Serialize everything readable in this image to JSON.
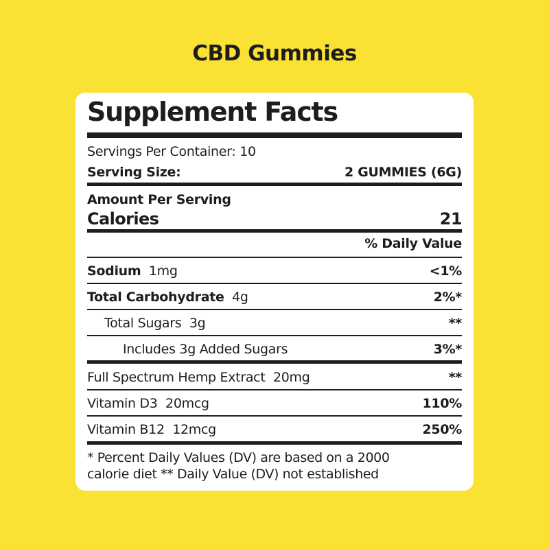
{
  "heading": "CBD Gummies",
  "label": {
    "title": "Supplement Facts",
    "servings_per_container": "Servings Per Container: 10",
    "serving_size_label": "Serving Size:",
    "serving_size_value": "2 GUMMIES (6G)",
    "amount_per_serving": "Amount Per Serving",
    "calories_label": "Calories",
    "calories_value": "21",
    "daily_value_header": "% Daily Value",
    "rows": [
      {
        "name": "Sodium",
        "amount": "1mg",
        "dv": "<1%"
      },
      {
        "name": "Total Carbohydrate",
        "amount": "4g",
        "dv": "2%*"
      },
      {
        "name": "Total Sugars",
        "amount": "3g",
        "dv": "**"
      },
      {
        "name": "Includes 3g Added Sugars",
        "amount": "",
        "dv": "3%*"
      },
      {
        "name": "Full Spectrum Hemp Extract",
        "amount": "20mg",
        "dv": "**"
      },
      {
        "name": "Vitamin D3",
        "amount": "20mcg",
        "dv": "110%"
      },
      {
        "name": "Vitamin B12",
        "amount": "12mcg",
        "dv": "250%"
      }
    ],
    "footnote_line1": "* Percent Daily Values (DV) are based on a 2000",
    "footnote_line2": "calorie diet ** Daily Value (DV) not established"
  },
  "colors": {
    "background": "#f9e234",
    "card": "#ffffff",
    "text": "#1d1d1d"
  }
}
